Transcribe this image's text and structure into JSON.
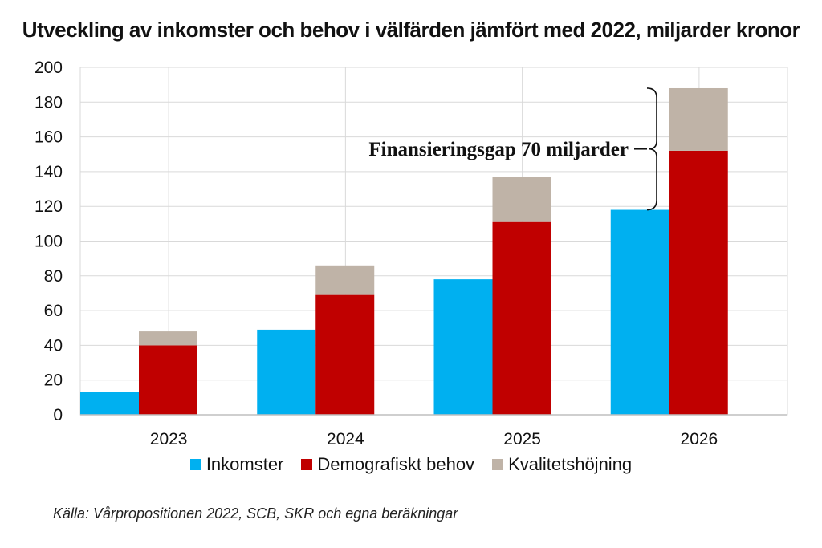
{
  "chart_data": {
    "type": "bar",
    "title": "Utveckling av inkomster och behov i välfärden jämfört med 2022, miljarder kronor",
    "categories": [
      "2023",
      "2024",
      "2025",
      "2026"
    ],
    "series": [
      {
        "name": "Inkomster",
        "color": "#00b0f0",
        "values": [
          13,
          49,
          78,
          118
        ]
      },
      {
        "name": "Demografiskt behov",
        "color": "#c00000",
        "values": [
          40,
          69,
          111,
          152
        ],
        "stack": "behov"
      },
      {
        "name": "Kvalitetshöjning",
        "color": "#bfb3a7",
        "values": [
          8,
          17,
          26,
          36
        ],
        "stack": "behov"
      }
    ],
    "ylim": [
      0,
      200
    ],
    "yticks": [
      0,
      20,
      40,
      60,
      80,
      100,
      120,
      140,
      160,
      180,
      200
    ],
    "grid": true,
    "legend_position": "bottom",
    "annotation": {
      "text": "Finansieringsgap 70 miljarder",
      "from": 118,
      "to": 188
    },
    "source": "Källa: Vårpropositionen 2022, SCB, SKR och egna beräkningar"
  }
}
